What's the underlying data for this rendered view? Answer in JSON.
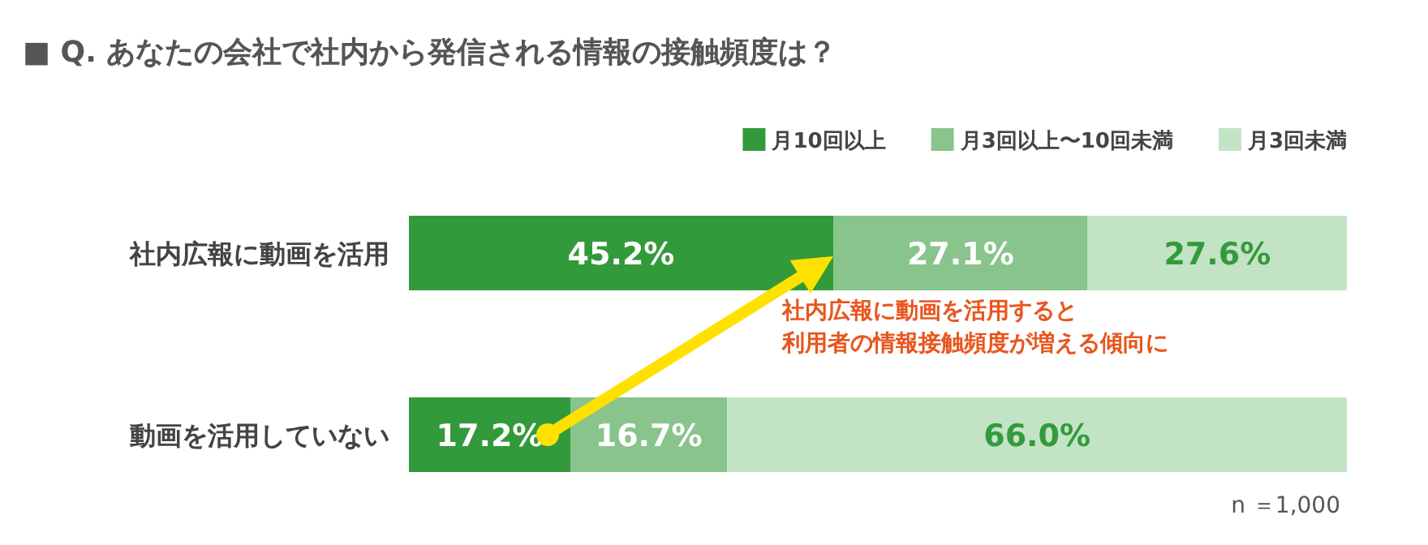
{
  "chart_data": {
    "type": "bar",
    "orientation": "horizontal",
    "stacked": true,
    "title": "■ Q. あなたの会社で社内から発信される情報の接触頻度は？",
    "categories": [
      "社内広報に動画を活用",
      "動画を活用していない"
    ],
    "series": [
      {
        "name": "月10回以上",
        "color": "#339a3b",
        "values": [
          45.2,
          17.2
        ],
        "value_labels": [
          "45.2%",
          "17.2%"
        ]
      },
      {
        "name": "月3回以上〜10回未満",
        "color": "#88c48b",
        "values": [
          27.1,
          16.7
        ],
        "value_labels": [
          "27.1%",
          "16.7%"
        ]
      },
      {
        "name": "月3回未満",
        "color": "#c3e3c5",
        "values": [
          27.6,
          66.0
        ],
        "value_labels": [
          "27.6%",
          "66.0%"
        ]
      }
    ],
    "legend": "top right",
    "annotations": [
      "社内広報に動画を活用すると",
      "利用者の情報接触頻度が増える傾向に",
      "n ＝1,000"
    ]
  }
}
